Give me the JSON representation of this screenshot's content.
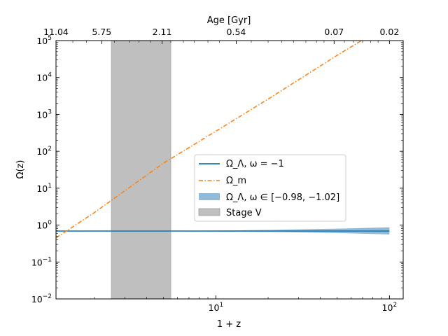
{
  "chart_data": {
    "type": "line",
    "xlabel": "1 + z",
    "ylabel": "Ω(z)",
    "top_xlabel": "Age [Gyr]",
    "xscale": "log",
    "yscale": "log",
    "xlim": [
      1.2,
      120
    ],
    "ylim": [
      0.01,
      100000
    ],
    "x_major_ticks": [
      {
        "value": 10,
        "base": "10",
        "exp": "1"
      },
      {
        "value": 100,
        "base": "10",
        "exp": "2"
      }
    ],
    "y_ticks": [
      {
        "value": 0.01,
        "base": "10",
        "exp": "−2"
      },
      {
        "value": 0.1,
        "base": "10",
        "exp": "−1"
      },
      {
        "value": 1,
        "base": "10",
        "exp": "0"
      },
      {
        "value": 10,
        "base": "10",
        "exp": "1"
      },
      {
        "value": 100,
        "base": "10",
        "exp": "2"
      },
      {
        "value": 1000,
        "base": "10",
        "exp": "3"
      },
      {
        "value": 10000,
        "base": "10",
        "exp": "4"
      },
      {
        "value": 100000,
        "base": "10",
        "exp": "5"
      }
    ],
    "top_ticks": [
      {
        "label": "11.04",
        "x": 1.2
      },
      {
        "label": "5.75",
        "x": 2.2
      },
      {
        "label": "2.11",
        "x": 4.9
      },
      {
        "label": "0.54",
        "x": 13.1
      },
      {
        "label": "0.07",
        "x": 48
      },
      {
        "label": "0.02",
        "x": 100
      }
    ],
    "series": [
      {
        "name": "Ω_Λ, ω = −1",
        "style": "solid",
        "color": "#1f77b4",
        "x": [
          1.2,
          2,
          5,
          10,
          20,
          50,
          100
        ],
        "y": [
          0.69,
          0.69,
          0.69,
          0.69,
          0.69,
          0.69,
          0.69
        ]
      },
      {
        "name": "Ω_m",
        "style": "dashdot",
        "color": "#ff7f0e",
        "x": [
          1.2,
          2,
          5,
          10,
          20,
          50,
          69
        ],
        "y": [
          0.45,
          2.2,
          48,
          350,
          2600,
          40000,
          100000
        ]
      }
    ],
    "band": {
      "name": "Ω_Λ, ω ∈ [−0.98, −1.02]",
      "color": "#1f77b4",
      "x": [
        1.2,
        5,
        10,
        20,
        50,
        100
      ],
      "y_low": [
        0.69,
        0.68,
        0.67,
        0.65,
        0.61,
        0.56
      ],
      "y_high": [
        0.69,
        0.7,
        0.71,
        0.74,
        0.8,
        0.87
      ]
    },
    "shaded_region": {
      "name": "Stage V",
      "color": "#bfbfbf",
      "x_range": [
        2.5,
        5.5
      ]
    },
    "legend_placement": "center-right",
    "grid": false
  }
}
